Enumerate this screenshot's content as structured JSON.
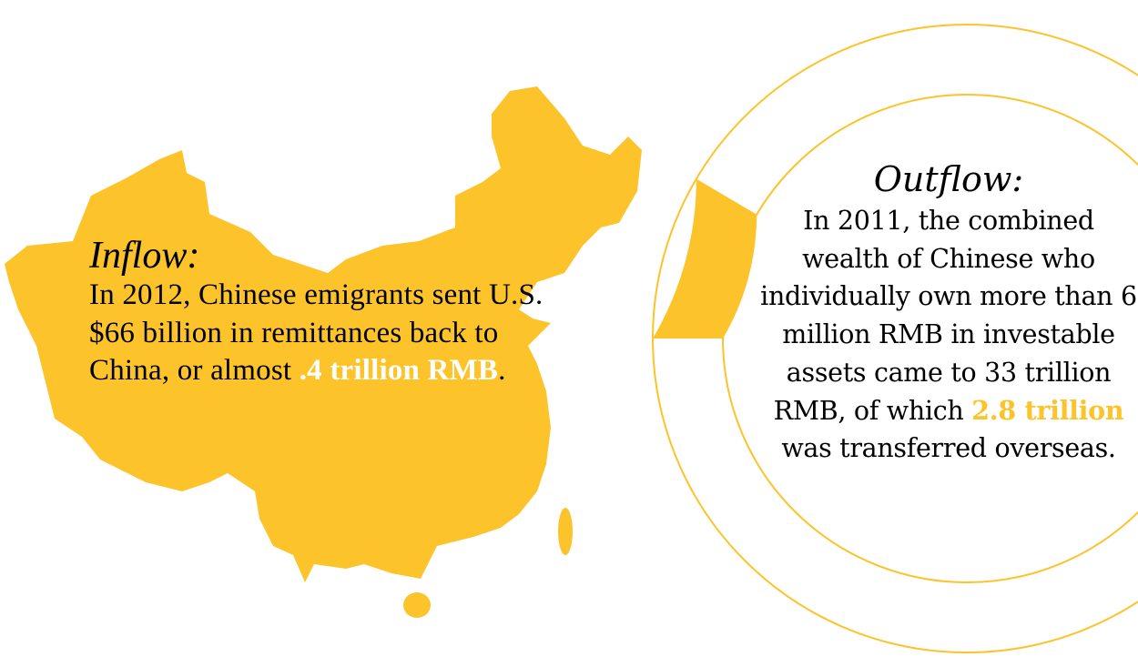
{
  "colors": {
    "accent": "#FCC32A",
    "text": "#000000",
    "highlight_on_map": "#FFFFFF"
  },
  "inflow": {
    "title": "Inflow:",
    "body_before": "In 2012, Chinese emigrants sent U.S. $66 billion in remittances back to China, or almost ",
    "highlight": ".4 trillion RMB",
    "body_after": "."
  },
  "outflow": {
    "title": "Outflow:",
    "body_before": "In 2011, the combined wealth of Chinese who individually own more than 6 million RMB in investable assets came to 33 trillion RMB, of which ",
    "highlight": "2.8 trillion",
    "body_after": " was transferred overseas."
  },
  "ring": {
    "total": 33,
    "transferred": 2.8,
    "unit": "trillion RMB"
  }
}
